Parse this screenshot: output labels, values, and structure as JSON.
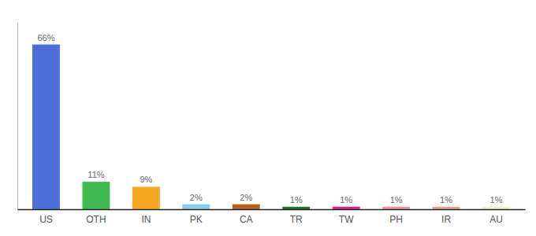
{
  "chart_data": {
    "type": "bar",
    "categories": [
      "US",
      "OTH",
      "IN",
      "PK",
      "CA",
      "TR",
      "TW",
      "PH",
      "IR",
      "AU"
    ],
    "values": [
      66,
      11,
      9,
      2,
      2,
      1,
      1,
      1,
      1,
      1
    ],
    "value_labels": [
      "66%",
      "11%",
      "9%",
      "2%",
      "2%",
      "1%",
      "1%",
      "1%",
      "1%",
      "1%"
    ],
    "colors": [
      "#4d6fdb",
      "#3fba4f",
      "#f5a623",
      "#87ceeb",
      "#b5651d",
      "#2a6e28",
      "#e91e8c",
      "#f48ca0",
      "#e8a090",
      "#f0f0d0"
    ],
    "ylim": [
      0,
      75
    ],
    "data_labels": true,
    "tick_labels": "x",
    "grid": false
  }
}
